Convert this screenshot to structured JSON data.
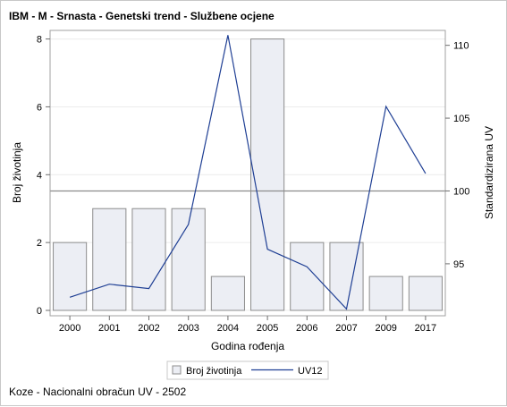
{
  "chart_data": {
    "type": "bar",
    "title": "IBM - M - Srnasta - Genetski trend - Službene ocjene",
    "xlabel": "Godina rođenja",
    "ylabel_left": "Broj životinja",
    "ylabel_right": "Standardizirana UV",
    "categories": [
      "2000",
      "2001",
      "2002",
      "2003",
      "2004",
      "2005",
      "2006",
      "2007",
      "2009",
      "2017"
    ],
    "y_left_lim": [
      0,
      8.2
    ],
    "y_left_ticks": [
      "0",
      "2",
      "4",
      "6",
      "8"
    ],
    "y_right_lim": [
      91.8,
      110.9
    ],
    "y_right_ticks": [
      "95",
      "100",
      "105",
      "110"
    ],
    "reference_line": 100,
    "grid": true,
    "legend_position": "bottom",
    "series": [
      {
        "name": "Broj životinja",
        "type": "bar",
        "axis": "left",
        "color": "#eceef4",
        "values": [
          2,
          3,
          3,
          3,
          1,
          8,
          2,
          2,
          1,
          1
        ]
      },
      {
        "name": "UV12",
        "type": "line",
        "axis": "right",
        "color": "#1f3f94",
        "values": [
          92.7,
          93.6,
          93.3,
          97.7,
          110.7,
          96.0,
          94.8,
          91.9,
          105.8,
          101.2
        ]
      }
    ],
    "footnote": "Koze - Nacionalni obračun UV - 2502"
  }
}
